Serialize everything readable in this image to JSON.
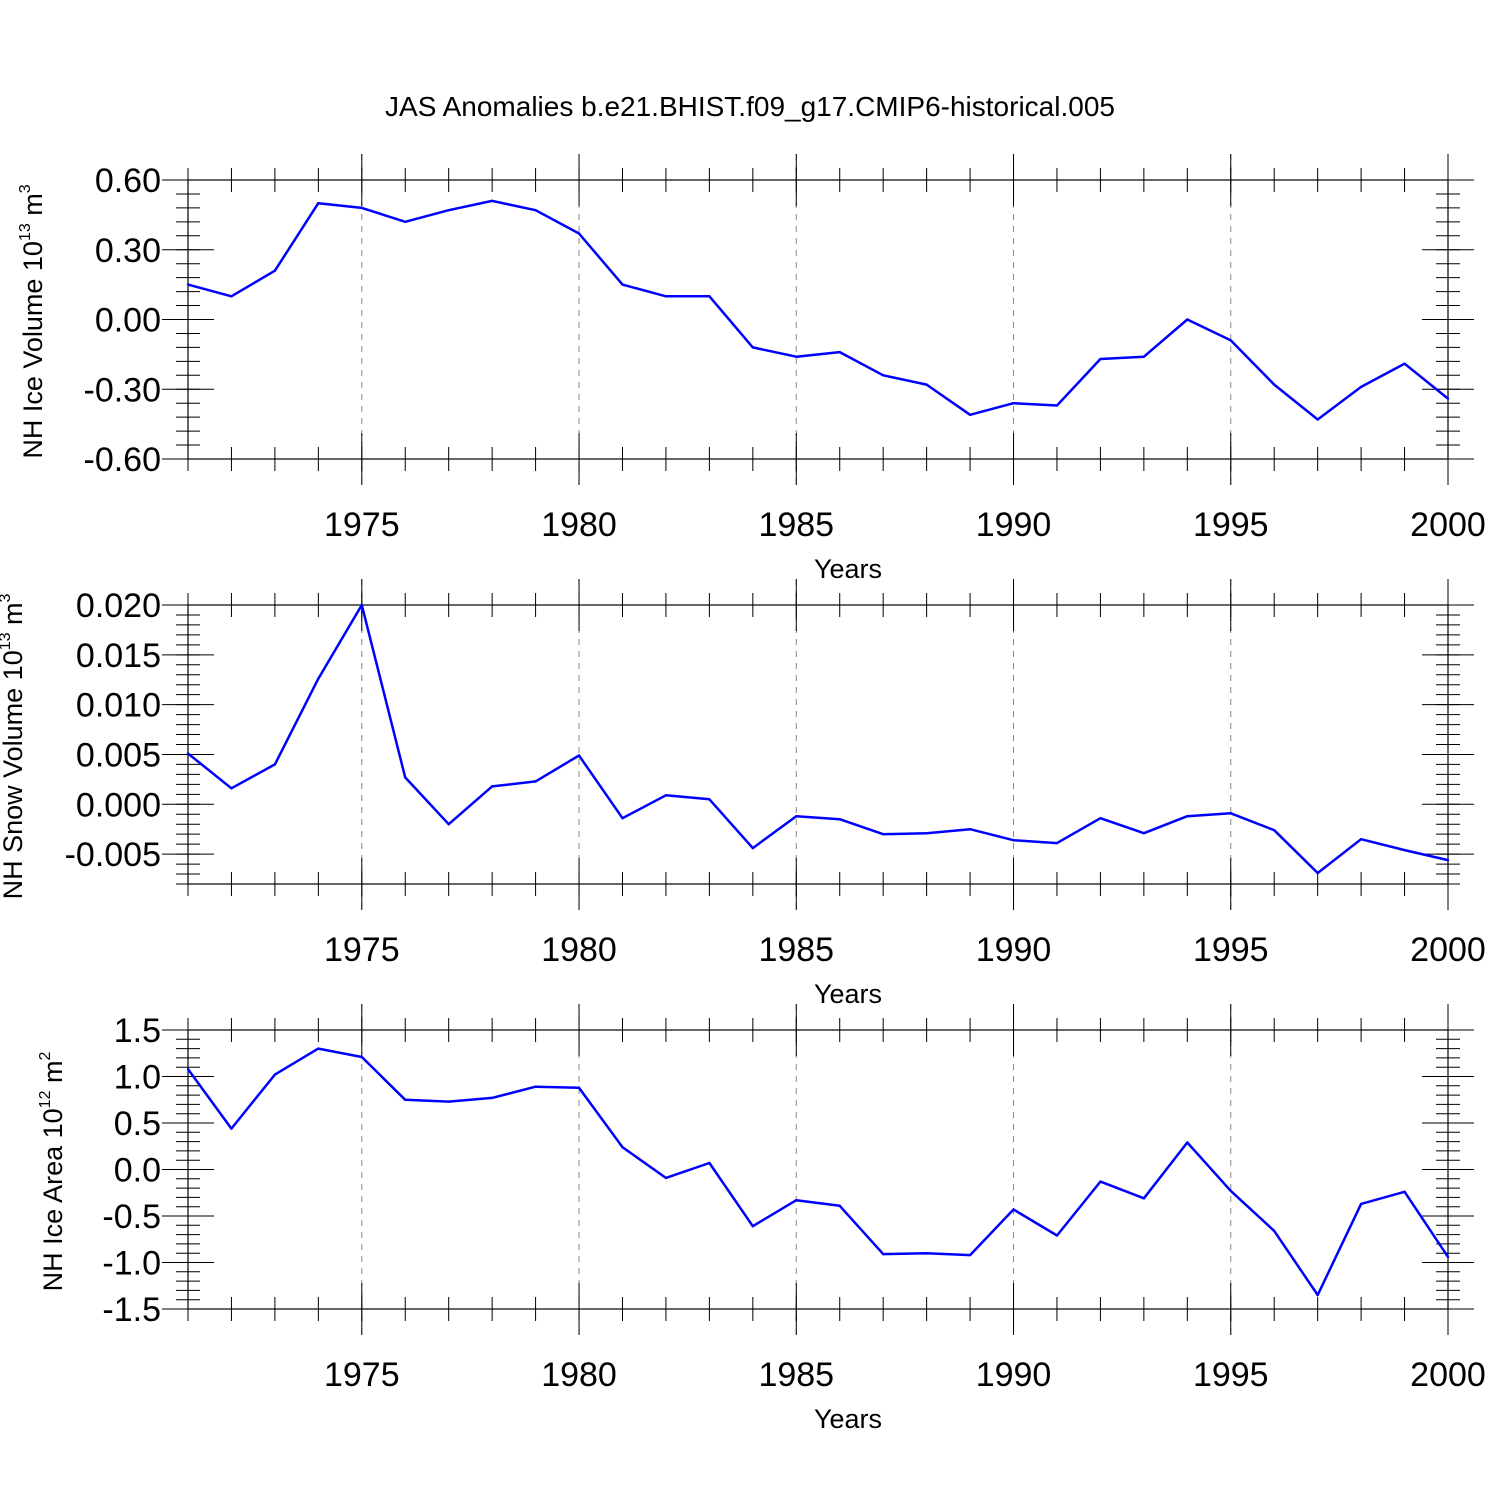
{
  "title": "JAS Anomalies b.e21.BHIST.f09_g17.CMIP6-historical.005",
  "chart_data": [
    {
      "type": "line",
      "title": "JAS Anomalies b.e21.BHIST.f09_g17.CMIP6-historical.005",
      "xlabel": "Years",
      "ylabel": "NH Ice Volume 10",
      "ylabel_exp": "13",
      "ylabel_unit": "m",
      "ylabel_unit_exp": "3",
      "xlim": [
        1971,
        2000
      ],
      "ylim": [
        -0.6,
        0.6
      ],
      "xticks": [
        1975,
        1980,
        1985,
        1990,
        1995,
        2000
      ],
      "yticks": [
        0.6,
        0.3,
        0.0,
        -0.3,
        -0.6
      ],
      "ytick_labels": [
        "0.60",
        "0.30",
        "0.00",
        "-0.30",
        "-0.60"
      ],
      "grid": "vertical dashed at major x ticks",
      "line_color": "#0000ff",
      "x": [
        1971,
        1972,
        1973,
        1974,
        1975,
        1976,
        1977,
        1978,
        1979,
        1980,
        1981,
        1982,
        1983,
        1984,
        1985,
        1986,
        1987,
        1988,
        1989,
        1990,
        1991,
        1992,
        1993,
        1994,
        1995,
        1996,
        1997,
        1998,
        1999,
        2000
      ],
      "values": [
        0.15,
        0.1,
        0.21,
        0.5,
        0.48,
        0.42,
        0.47,
        0.51,
        0.47,
        0.37,
        0.15,
        0.1,
        0.1,
        -0.12,
        -0.16,
        -0.14,
        -0.24,
        -0.28,
        -0.41,
        -0.36,
        -0.37,
        -0.17,
        -0.16,
        0.0,
        -0.09,
        -0.28,
        -0.43,
        -0.29,
        -0.19,
        -0.34
      ]
    },
    {
      "type": "line",
      "xlabel": "Years",
      "ylabel": "NH Snow Volume 10",
      "ylabel_exp": "13",
      "ylabel_unit": "m",
      "ylabel_unit_exp": "3",
      "xlim": [
        1971,
        2000
      ],
      "ylim": [
        -0.008,
        0.02
      ],
      "xticks": [
        1975,
        1980,
        1985,
        1990,
        1995,
        2000
      ],
      "yticks": [
        0.02,
        0.015,
        0.01,
        0.005,
        0.0,
        -0.005
      ],
      "ytick_labels": [
        "0.020",
        "0.015",
        "0.010",
        "0.005",
        "0.000",
        "-0.005"
      ],
      "grid": "vertical dashed at major x ticks",
      "line_color": "#0000ff",
      "x": [
        1971,
        1972,
        1973,
        1974,
        1975,
        1976,
        1977,
        1978,
        1979,
        1980,
        1981,
        1982,
        1983,
        1984,
        1985,
        1986,
        1987,
        1988,
        1989,
        1990,
        1991,
        1992,
        1993,
        1994,
        1995,
        1996,
        1997,
        1998,
        1999,
        2000
      ],
      "values": [
        0.0051,
        0.0016,
        0.004,
        0.0126,
        0.02,
        0.0027,
        -0.002,
        0.0018,
        0.0023,
        0.0049,
        -0.0014,
        0.0009,
        0.0005,
        -0.0044,
        -0.0012,
        -0.0015,
        -0.003,
        -0.0029,
        -0.0025,
        -0.0036,
        -0.0039,
        -0.0014,
        -0.0029,
        -0.0012,
        -0.0009,
        -0.0026,
        -0.0069,
        -0.0035,
        -0.0046,
        -0.0056
      ]
    },
    {
      "type": "line",
      "xlabel": "Years",
      "ylabel": "NH Ice Area 10",
      "ylabel_exp": "12",
      "ylabel_unit": "m",
      "ylabel_unit_exp": "2",
      "xlim": [
        1971,
        2000
      ],
      "ylim": [
        -1.5,
        1.5
      ],
      "xticks": [
        1975,
        1980,
        1985,
        1990,
        1995,
        2000
      ],
      "yticks": [
        1.5,
        1.0,
        0.5,
        0.0,
        -0.5,
        -1.0,
        -1.5
      ],
      "ytick_labels": [
        "1.5",
        "1.0",
        "0.5",
        "0.0",
        "-0.5",
        "-1.0",
        "-1.5"
      ],
      "grid": "vertical dashed at major x ticks",
      "line_color": "#0000ff",
      "x": [
        1971,
        1972,
        1973,
        1974,
        1975,
        1976,
        1977,
        1978,
        1979,
        1980,
        1981,
        1982,
        1983,
        1984,
        1985,
        1986,
        1987,
        1988,
        1989,
        1990,
        1991,
        1992,
        1993,
        1994,
        1995,
        1996,
        1997,
        1998,
        1999,
        2000
      ],
      "values": [
        1.08,
        0.44,
        1.02,
        1.3,
        1.21,
        0.75,
        0.73,
        0.77,
        0.89,
        0.88,
        0.24,
        -0.09,
        0.07,
        -0.61,
        -0.33,
        -0.39,
        -0.91,
        -0.9,
        -0.92,
        -0.43,
        -0.71,
        -0.13,
        -0.31,
        0.29,
        -0.23,
        -0.66,
        -1.35,
        -0.37,
        -0.24,
        -0.94
      ]
    }
  ]
}
